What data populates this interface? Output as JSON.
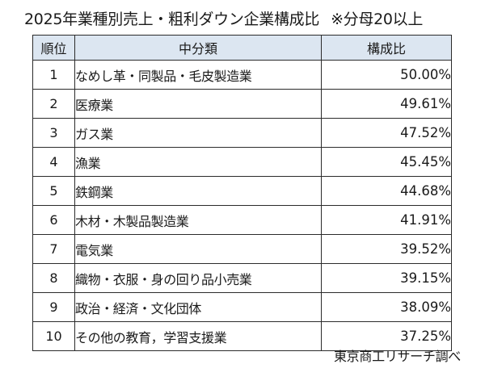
{
  "title": {
    "main": "2025年業種別売上・粗利ダウン企業構成比",
    "note": "※分母20以上"
  },
  "table": {
    "headers": {
      "rank": "順位",
      "category": "中分類",
      "ratio": "構成比"
    },
    "rows": [
      {
        "rank": "1",
        "category": "なめし革・同製品・毛皮製造業",
        "ratio": "50.00%"
      },
      {
        "rank": "2",
        "category": "医療業",
        "ratio": "49.61%"
      },
      {
        "rank": "3",
        "category": "ガス業",
        "ratio": "47.52%"
      },
      {
        "rank": "4",
        "category": "漁業",
        "ratio": "45.45%"
      },
      {
        "rank": "5",
        "category": "鉄鋼業",
        "ratio": "44.68%"
      },
      {
        "rank": "6",
        "category": "木材・木製品製造業",
        "ratio": "41.91%"
      },
      {
        "rank": "7",
        "category": "電気業",
        "ratio": "39.52%"
      },
      {
        "rank": "8",
        "category": "織物・衣服・身の回り品小売業",
        "ratio": "39.15%"
      },
      {
        "rank": "9",
        "category": "政治・経済・文化団体",
        "ratio": "38.09%"
      },
      {
        "rank": "10",
        "category": "その他の教育，学習支援業",
        "ratio": "37.25%"
      }
    ]
  },
  "source": "東京商工リサーチ調べ"
}
